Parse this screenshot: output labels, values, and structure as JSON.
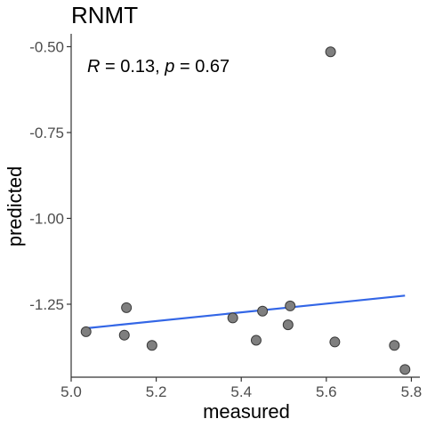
{
  "chart_data": {
    "type": "scatter",
    "title": "RNMT",
    "xlabel": "measured",
    "ylabel": "predicted",
    "xlim": [
      5.0,
      5.82
    ],
    "ylim": [
      -1.4625,
      -0.4625
    ],
    "x_ticks": [
      "5.0",
      "5.2",
      "5.4",
      "5.6",
      "5.8"
    ],
    "y_ticks": [
      "-0.50",
      "-0.75",
      "-1.00",
      "-1.25"
    ],
    "annotation": {
      "r_symbol": "R",
      "r_value": " = 0.13, ",
      "p_symbol": "p",
      "p_value": " = 0.67"
    },
    "points": [
      {
        "x": 5.035,
        "y": -1.33
      },
      {
        "x": 5.125,
        "y": -1.34
      },
      {
        "x": 5.13,
        "y": -1.26
      },
      {
        "x": 5.19,
        "y": -1.37
      },
      {
        "x": 5.38,
        "y": -1.29
      },
      {
        "x": 5.435,
        "y": -1.355
      },
      {
        "x": 5.45,
        "y": -1.27
      },
      {
        "x": 5.51,
        "y": -1.31
      },
      {
        "x": 5.515,
        "y": -1.255
      },
      {
        "x": 5.61,
        "y": -0.515
      },
      {
        "x": 5.62,
        "y": -1.36
      },
      {
        "x": 5.76,
        "y": -1.37
      },
      {
        "x": 5.785,
        "y": -1.44
      }
    ],
    "regression": {
      "x": [
        5.035,
        5.785
      ],
      "y": [
        -1.32,
        -1.225
      ]
    },
    "grid": false,
    "colors": {
      "point_fill": "#7f7f7f",
      "point_stroke": "#3a3a3a",
      "line": "#3366e6"
    }
  }
}
